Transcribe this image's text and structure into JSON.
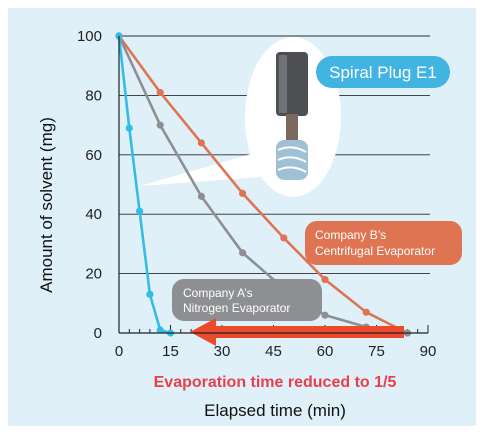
{
  "colors": {
    "background": "#dff0f9",
    "spiral": "#33bde6",
    "company_b": "#df7453",
    "company_a": "#8e8f92",
    "arrow": "#ec4a2d",
    "subtitle": "#e8404a",
    "callout_spiral_bg": "#41b4e2"
  },
  "chart_data": {
    "type": "line",
    "xlabel": "Elapsed time (min)",
    "ylabel": "Amount of solvent (mg)",
    "subtitle": "Evaporation time reduced to 1/5",
    "xlim": [
      0,
      90
    ],
    "ylim": [
      0,
      100
    ],
    "x_ticks": [
      "0",
      "15",
      "30",
      "45",
      "60",
      "75",
      "90"
    ],
    "y_ticks": [
      "0",
      "20",
      "40",
      "60",
      "80",
      "100"
    ],
    "grid": "horizontal",
    "series": [
      {
        "name": "Spiral Plug E1",
        "color": "#33bde6",
        "points": [
          [
            0,
            100
          ],
          [
            3,
            69
          ],
          [
            6,
            41
          ],
          [
            9,
            13
          ],
          [
            12,
            1
          ],
          [
            15,
            0
          ]
        ]
      },
      {
        "name": "Company B’s Centrifugal Evaporator",
        "color": "#df7453",
        "points": [
          [
            0,
            100
          ],
          [
            12,
            81
          ],
          [
            24,
            64
          ],
          [
            36,
            47
          ],
          [
            48,
            32
          ],
          [
            60,
            18
          ],
          [
            72,
            7
          ],
          [
            84,
            0
          ]
        ]
      },
      {
        "name": "Company A’s Nitrogen Evaporator",
        "color": "#8e8f92",
        "points": [
          [
            0,
            100
          ],
          [
            12,
            70
          ],
          [
            24,
            46
          ],
          [
            36,
            27
          ],
          [
            48,
            15
          ],
          [
            60,
            6
          ],
          [
            72,
            2
          ],
          [
            84,
            0
          ]
        ]
      }
    ],
    "annotations": {
      "spiral_label": "Spiral Plug E1",
      "company_b_line1": "Company B’s",
      "company_b_line2": "Centrifugal Evaporator",
      "company_a_line1": "Company A’s",
      "company_a_line2": "Nitrogen Evaporator"
    }
  }
}
